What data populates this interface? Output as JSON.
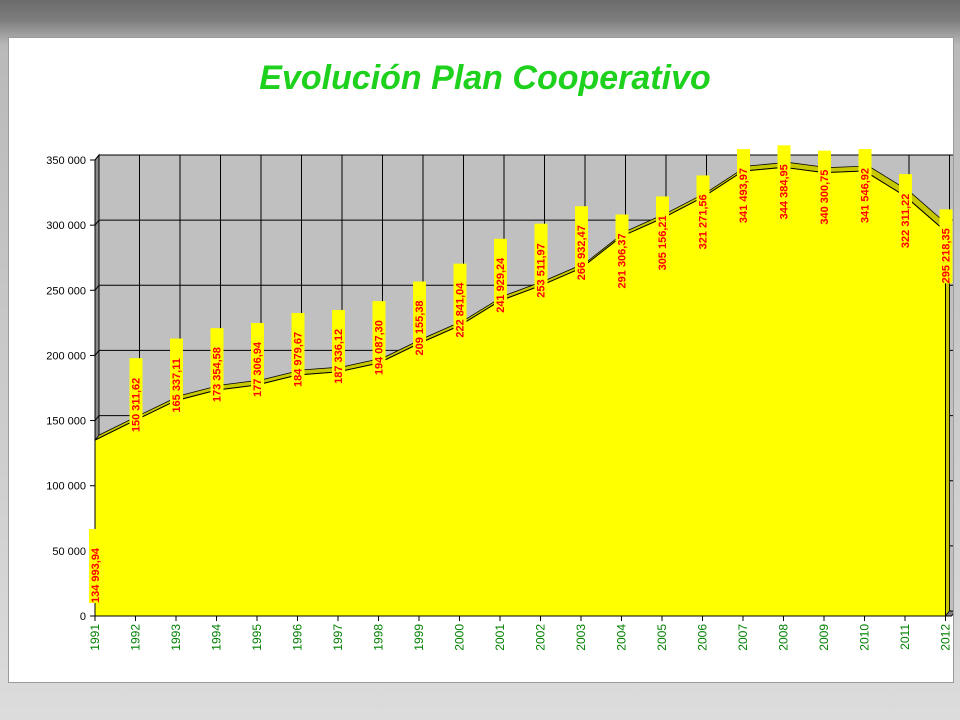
{
  "chart_data": {
    "type": "area",
    "title": "Evolución Plan Cooperativo",
    "xlabel": "",
    "ylabel": "",
    "ylim": [
      0,
      350000
    ],
    "yticks": [
      0,
      50000,
      100000,
      150000,
      200000,
      250000,
      300000,
      350000
    ],
    "ytick_labels": [
      "0",
      "50 000",
      "100 000",
      "150 000",
      "200 000",
      "250 000",
      "300 000",
      "350 000"
    ],
    "grid": true,
    "categories": [
      "1991",
      "1992",
      "1993",
      "1994",
      "1995",
      "1996",
      "1997",
      "1998",
      "1999",
      "2000",
      "2001",
      "2002",
      "2003",
      "2004",
      "2005",
      "2006",
      "2007",
      "2008",
      "2009",
      "2010",
      "2011",
      "2012"
    ],
    "values": [
      134993.94,
      150311.62,
      165337.11,
      173354.58,
      177306.94,
      184979.67,
      187336.12,
      194087.3,
      209155.38,
      222841.04,
      241929.24,
      253511.97,
      266932.47,
      291306.37,
      305156.21,
      321271.56,
      341493.97,
      344384.95,
      340300.75,
      341546.92,
      322311.22,
      295218.35
    ],
    "value_labels": [
      "134 993,94",
      "150 311,62",
      "165 337,11",
      "173 354,58",
      "177 306,94",
      "184 979,67",
      "187 336,12",
      "194 087,30",
      "209 155,38",
      "222 841,04",
      "241 929,24",
      "253 511,97",
      "266 932,47",
      "291 306,37",
      "305 156,21",
      "321 271,56",
      "341 493,97",
      "344 384,95",
      "340 300,75",
      "341 546,92",
      "322 311,22",
      "295 218,35"
    ],
    "colors": {
      "title": "#1dd11d",
      "fill": "#ffff00",
      "fill_side": "#c8c800",
      "wall": "#c0c0c0",
      "data_label": "#ff0000",
      "x_tick": "#008000"
    }
  }
}
